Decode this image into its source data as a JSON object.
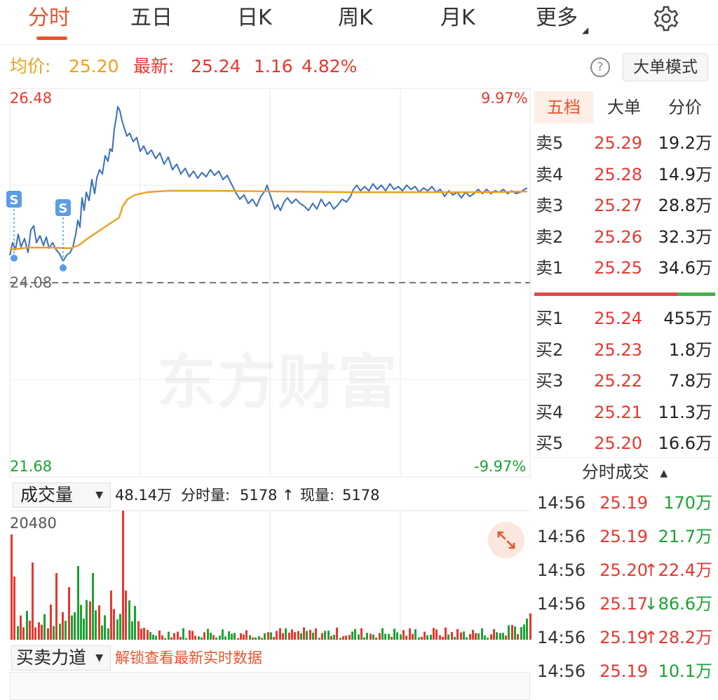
{
  "tabs": [
    {
      "label": "分时",
      "active": true
    },
    {
      "label": "五日"
    },
    {
      "label": "日K"
    },
    {
      "label": "周K"
    },
    {
      "label": "月K"
    },
    {
      "label": "更多"
    }
  ],
  "info": {
    "avg_label": "均价:",
    "avg_value": "25.20",
    "latest_label": "最新:",
    "latest_value": "25.24",
    "change": "1.16",
    "change_pct": "4.82%",
    "help_icon": "?",
    "mode_button": "大单模式"
  },
  "chart": {
    "y_max": "26.48",
    "y_min": "21.68",
    "y_ref": "24.08",
    "pct_max": "9.97%",
    "pct_min": "-9.97%",
    "watermark": "东方财富",
    "marker_label": "S",
    "volume_max_label": "20480",
    "colors": {
      "price_line": "#3a6fbe",
      "avg_line": "#f0a01e",
      "up": "#e8372e",
      "down": "#1aa334"
    }
  },
  "volume_bar": {
    "selector": "成交量",
    "total": "48.14万",
    "minute_label": "分时量:",
    "minute_value": "5178",
    "arrow": "↑",
    "current_label": "现量:",
    "current_value": "5178"
  },
  "force_bar": {
    "selector": "买卖力道",
    "unlock_text": "解锁查看最新实时数据"
  },
  "panel": {
    "tabs": [
      {
        "label": "五档",
        "active": true
      },
      {
        "label": "大单"
      },
      {
        "label": "分价"
      }
    ],
    "sells": [
      {
        "label": "卖5",
        "price": "25.29",
        "vol": "19.2万"
      },
      {
        "label": "卖4",
        "price": "25.28",
        "vol": "14.9万"
      },
      {
        "label": "卖3",
        "price": "25.27",
        "vol": "28.8万"
      },
      {
        "label": "卖2",
        "price": "25.26",
        "vol": "32.3万"
      },
      {
        "label": "卖1",
        "price": "25.25",
        "vol": "34.6万"
      }
    ],
    "buy_ratio": 0.79,
    "buys": [
      {
        "label": "买1",
        "price": "25.24",
        "vol": "455万"
      },
      {
        "label": "买2",
        "price": "25.23",
        "vol": "1.8万"
      },
      {
        "label": "买3",
        "price": "25.22",
        "vol": "7.8万"
      },
      {
        "label": "买4",
        "price": "25.21",
        "vol": "11.3万"
      },
      {
        "label": "买5",
        "price": "25.20",
        "vol": "16.6万"
      }
    ],
    "trade_header": "分时成交",
    "trades": [
      {
        "time": "14:56",
        "price": "25.19",
        "vol": "170万",
        "dir": ""
      },
      {
        "time": "14:56",
        "price": "25.19",
        "vol": "21.7万",
        "dir": ""
      },
      {
        "time": "14:56",
        "price": "25.20",
        "vol": "22.4万",
        "dir": "↑"
      },
      {
        "time": "14:56",
        "price": "25.17",
        "vol": "86.6万",
        "dir": "↓"
      },
      {
        "time": "14:56",
        "price": "25.19",
        "vol": "28.2万",
        "dir": "↑"
      },
      {
        "time": "14:56",
        "price": "25.19",
        "vol": "10.1万",
        "dir": ""
      }
    ]
  }
}
